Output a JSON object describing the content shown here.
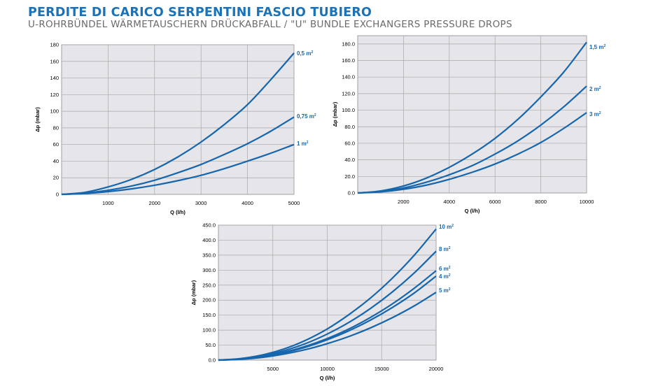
{
  "header": {
    "title": "PERDITE DI CARICO SERPENTINI FASCIO TUBIERO",
    "subtitle": "U-ROHRBÜNDEL WÄRMETAUSCHERN DRÜCKABFALL / \"U\" BUNDLE EXCHANGERS PRESSURE DROPS"
  },
  "colors": {
    "title": "#1a73b8",
    "curve": "#1566ad",
    "plot_bg": "#e6e5ea"
  },
  "chart_data": [
    {
      "type": "line",
      "xlabel": "Q (l/h)",
      "ylabel": "Δp (mbar)",
      "xlim": [
        0,
        5000
      ],
      "ylim": [
        0,
        180
      ],
      "xticks": [
        1000,
        2000,
        3000,
        4000,
        5000
      ],
      "xtick_labels": [
        "1000",
        "2000",
        "3000",
        "4000",
        "5000"
      ],
      "yticks": [
        0,
        20,
        40,
        60,
        80,
        100,
        120,
        140,
        160,
        180
      ],
      "ytick_labels": [
        "0",
        "20",
        "40",
        "60",
        "80",
        "100",
        "120",
        "140",
        "160",
        "180"
      ],
      "grid": true,
      "x": [
        0,
        500,
        1000,
        1500,
        2000,
        2500,
        3000,
        3500,
        4000,
        4500,
        5000
      ],
      "series": [
        {
          "name": "0,5 m",
          "sup": "2",
          "values": [
            0,
            2.5,
            9,
            18,
            30,
            45,
            63,
            84,
            108,
            138,
            170
          ]
        },
        {
          "name": "0,75 m",
          "sup": "2",
          "values": [
            0,
            1.5,
            5,
            10,
            17,
            26,
            36,
            48,
            61,
            76,
            93
          ]
        },
        {
          "name": "1 m",
          "sup": "2",
          "values": [
            0,
            1,
            3.3,
            6.6,
            11,
            16.5,
            23,
            31,
            40,
            49.5,
            60
          ]
        }
      ]
    },
    {
      "type": "line",
      "xlabel": "Q (l/h)",
      "ylabel": "Δp (mbar)",
      "xlim": [
        0,
        10000
      ],
      "ylim": [
        0,
        190
      ],
      "xticks": [
        2000,
        4000,
        6000,
        8000,
        10000
      ],
      "xtick_labels": [
        "2000",
        "4000",
        "6000",
        "8000",
        "10000"
      ],
      "yticks": [
        0,
        20,
        40,
        60,
        80,
        100,
        120,
        140,
        160,
        180
      ],
      "ytick_labels": [
        "0.0",
        "20.0",
        "40.0",
        "60.0",
        "80.0",
        "100.0",
        "120.0",
        "140.0",
        "160.0",
        "180.0"
      ],
      "grid": true,
      "x": [
        0,
        1000,
        2000,
        3000,
        4000,
        5000,
        6000,
        7000,
        8000,
        9000,
        10000
      ],
      "series": [
        {
          "name": "1,5 m",
          "sup": "2",
          "values": [
            0,
            2.5,
            8.5,
            18,
            31,
            47,
            66,
            89,
            116,
            146,
            182
          ]
        },
        {
          "name": "2 m",
          "sup": "2",
          "values": [
            0,
            1.8,
            6,
            13,
            22,
            33,
            47,
            63,
            82,
            104,
            129
          ]
        },
        {
          "name": "3 m",
          "sup": "2",
          "values": [
            0,
            1.3,
            4.5,
            9.5,
            16.5,
            25,
            35,
            47,
            61,
            78,
            97
          ]
        }
      ]
    },
    {
      "type": "line",
      "xlabel": "Q (l/h)",
      "ylabel": "Δp (mbar)",
      "xlim": [
        0,
        20000
      ],
      "ylim": [
        0,
        450
      ],
      "xticks": [
        5000,
        10000,
        15000,
        20000
      ],
      "xtick_labels": [
        "5000",
        "10000",
        "15000",
        "20000"
      ],
      "yticks": [
        0,
        50,
        100,
        150,
        200,
        250,
        300,
        350,
        400,
        450
      ],
      "ytick_labels": [
        "0.0",
        "50.0",
        "100.0",
        "150.0",
        "200.0",
        "250.0",
        "300.0",
        "350.0",
        "400.0",
        "450.0"
      ],
      "grid": true,
      "x": [
        0,
        2000,
        4000,
        6000,
        8000,
        10000,
        12000,
        14000,
        16000,
        18000,
        20000
      ],
      "series": [
        {
          "name": "10 m",
          "sup": "2",
          "values": [
            0,
            5,
            17,
            37,
            66,
            104,
            152,
            208,
            274,
            350,
            437
          ]
        },
        {
          "name": "8 m",
          "sup": "2",
          "values": [
            0,
            4,
            14,
            31,
            55,
            87,
            126,
            173,
            228,
            291,
            363
          ]
        },
        {
          "name": "6 m",
          "sup": "2",
          "values": [
            0,
            3.5,
            12,
            26,
            46,
            72,
            104,
            143,
            188,
            240,
            298
          ]
        },
        {
          "name": "4 m",
          "sup": "2",
          "values": [
            0,
            3.3,
            11,
            24,
            43,
            68,
            98,
            134,
            176,
            224,
            280
          ]
        },
        {
          "name": "5 m",
          "sup": "2",
          "values": [
            0,
            2.7,
            9,
            20,
            35,
            55,
            79,
            108,
            142,
            181,
            226
          ]
        }
      ]
    }
  ]
}
